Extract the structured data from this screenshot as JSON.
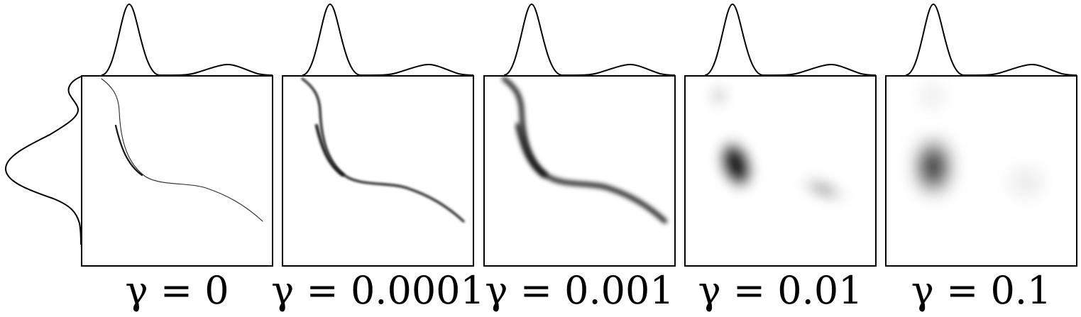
{
  "figure": {
    "panels": [
      {
        "label": "γ = 0",
        "gamma": "0"
      },
      {
        "label": "γ = 0.0001",
        "gamma": "0.0001"
      },
      {
        "label": "γ = 0.001",
        "gamma": "0.001"
      },
      {
        "label": "γ = 0.01",
        "gamma": "0.01"
      },
      {
        "label": "γ = 0.1",
        "gamma": "0.1"
      }
    ],
    "colors": {
      "ink": "#000000",
      "background": "#ffffff"
    }
  }
}
